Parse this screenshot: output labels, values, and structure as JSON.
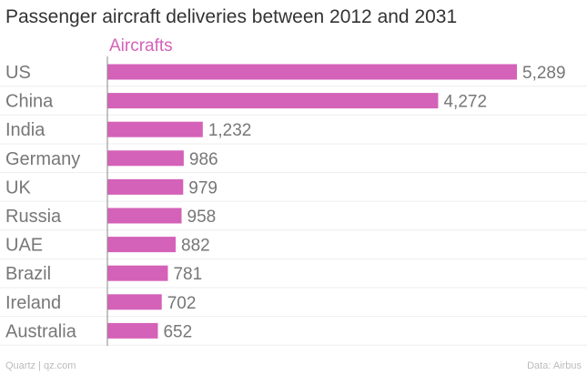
{
  "chart_data": {
    "type": "bar",
    "orientation": "horizontal",
    "title": "Passenger aircraft deliveries between 2012 and 2031",
    "series_label": "Aircrafts",
    "categories": [
      "US",
      "China",
      "India",
      "Germany",
      "UK",
      "Russia",
      "UAE",
      "Brazil",
      "Ireland",
      "Australia"
    ],
    "values": [
      5289,
      4272,
      1232,
      986,
      979,
      958,
      882,
      781,
      702,
      652
    ],
    "value_labels": [
      "5,289",
      "4,272",
      "1,232",
      "986",
      "979",
      "958",
      "882",
      "781",
      "702",
      "652"
    ],
    "xlim": [
      0,
      5289
    ],
    "grid": false
  },
  "footer": {
    "source_left": "Quartz | qz.com",
    "source_right": "Data: Airbus"
  },
  "colors": {
    "bar": "#d462b8",
    "series_label": "#d462b8",
    "category_label": "#777777",
    "value_label": "#777777",
    "axis": "#888888",
    "gridline": "#eeeeee"
  }
}
